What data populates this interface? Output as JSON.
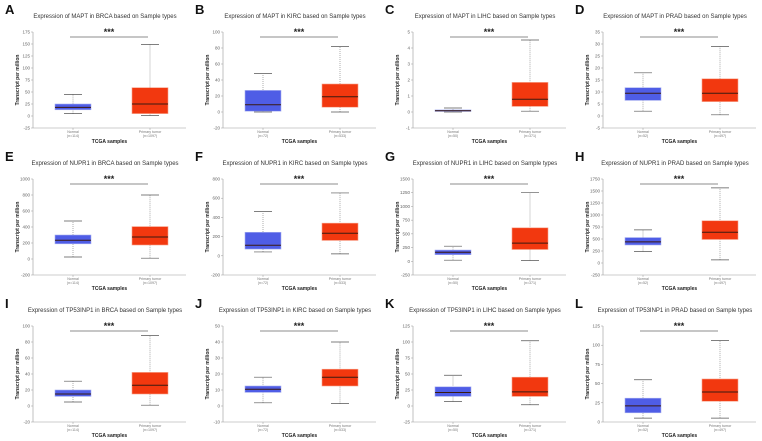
{
  "colors": {
    "normal": "#4f5de6",
    "tumor": "#f2380f",
    "median": "#3a1a10",
    "axis": "#999999"
  },
  "chart_data": [
    {
      "letter": "A",
      "title": "Expression of MAPT in BRCA based on Sample types",
      "type": "box",
      "xlabel": "TCGA samples",
      "ylabel": "Transcript per million",
      "ylim": [
        -25,
        175
      ],
      "ticks": [
        -25,
        0,
        25,
        50,
        75,
        100,
        125,
        150,
        175
      ],
      "significance": "***",
      "groups": [
        {
          "name": "Normal",
          "n": "(n=114)",
          "stats": [
            5,
            13,
            18,
            25,
            45
          ]
        },
        {
          "name": "Primary tumor",
          "n": "(n=1097)",
          "stats": [
            1,
            5,
            25,
            59,
            149
          ]
        }
      ]
    },
    {
      "letter": "B",
      "title": "Expression of MAPT in KIRC based on Sample types",
      "type": "box",
      "xlabel": "TCGA samples",
      "ylabel": "Transcript per million",
      "ylim": [
        -20,
        100
      ],
      "ticks": [
        -20,
        0,
        20,
        40,
        60,
        80,
        100
      ],
      "significance": "***",
      "groups": [
        {
          "name": "Normal",
          "n": "(n=72)",
          "stats": [
            0,
            1,
            9,
            27,
            48
          ]
        },
        {
          "name": "Primary tumor",
          "n": "(n=533)",
          "stats": [
            0,
            6,
            19,
            35,
            82
          ]
        }
      ]
    },
    {
      "letter": "C",
      "title": "Expression of MAPT in LIHC based on Sample types",
      "type": "box",
      "xlabel": "TCGA samples",
      "ylabel": "Transcript per million",
      "ylim": [
        -1,
        5
      ],
      "ticks": [
        -1,
        0,
        1,
        2,
        3,
        4,
        5
      ],
      "significance": "***",
      "groups": [
        {
          "name": "Normal",
          "n": "(n=50)",
          "stats": [
            0,
            0.05,
            0.08,
            0.13,
            0.25
          ]
        },
        {
          "name": "Primary tumor",
          "n": "(n=371)",
          "stats": [
            0.05,
            0.35,
            0.8,
            1.85,
            4.5
          ]
        }
      ]
    },
    {
      "letter": "D",
      "title": "Expression of MAPT in PRAD based on Sample types",
      "type": "box",
      "xlabel": "TCGA samples",
      "ylabel": "Transcript per million",
      "ylim": [
        -5,
        35
      ],
      "ticks": [
        -5,
        0,
        5,
        10,
        15,
        20,
        25,
        30,
        35
      ],
      "significance": "***",
      "groups": [
        {
          "name": "Normal",
          "n": "(n=52)",
          "stats": [
            2,
            6.5,
            9.5,
            11.8,
            18
          ]
        },
        {
          "name": "Primary tumor",
          "n": "(n=497)",
          "stats": [
            0.5,
            6,
            9.5,
            15.5,
            29
          ]
        }
      ]
    },
    {
      "letter": "E",
      "title": "Expression of NUPR1 in BRCA based on Sample types",
      "type": "box",
      "xlabel": "TCGA samples",
      "ylabel": "Transcript per million",
      "ylim": [
        -200,
        1000
      ],
      "ticks": [
        -200,
        0,
        200,
        400,
        600,
        800,
        1000
      ],
      "significance": "***",
      "groups": [
        {
          "name": "Normal",
          "n": "(n=114)",
          "stats": [
            25,
            190,
            235,
            300,
            475
          ]
        },
        {
          "name": "Primary tumor",
          "n": "(n=1097)",
          "stats": [
            10,
            175,
            275,
            405,
            800
          ]
        }
      ]
    },
    {
      "letter": "F",
      "title": "Expression of NUPR1 in KIRC based on Sample types",
      "type": "box",
      "xlabel": "TCGA samples",
      "ylabel": "Transcript per million",
      "ylim": [
        -200,
        800
      ],
      "ticks": [
        -200,
        0,
        200,
        400,
        600,
        800
      ],
      "significance": "***",
      "groups": [
        {
          "name": "Normal",
          "n": "(n=72)",
          "stats": [
            40,
            70,
            110,
            245,
            460
          ]
        },
        {
          "name": "Primary tumor",
          "n": "(n=533)",
          "stats": [
            20,
            160,
            235,
            340,
            655
          ]
        }
      ]
    },
    {
      "letter": "G",
      "title": "Expression of NUPR1 in LIHC based on Sample types",
      "type": "box",
      "xlabel": "TCGA samples",
      "ylabel": "Transcript per million",
      "ylim": [
        -250,
        1500
      ],
      "ticks": [
        -250,
        0,
        250,
        500,
        750,
        1000,
        1250,
        1500
      ],
      "significance": "***",
      "groups": [
        {
          "name": "Normal",
          "n": "(n=50)",
          "stats": [
            20,
            120,
            165,
            205,
            275
          ]
        },
        {
          "name": "Primary tumor",
          "n": "(n=371)",
          "stats": [
            15,
            215,
            330,
            610,
            1255
          ]
        }
      ]
    },
    {
      "letter": "H",
      "title": "Expression of NUPR1 in PRAD based on Sample types",
      "type": "box",
      "xlabel": "TCGA samples",
      "ylabel": "Transcript per million",
      "ylim": [
        -250,
        1750
      ],
      "ticks": [
        -250,
        0,
        250,
        500,
        750,
        1000,
        1250,
        1500,
        1750
      ],
      "significance": "***",
      "groups": [
        {
          "name": "Normal",
          "n": "(n=52)",
          "stats": [
            240,
            375,
            440,
            530,
            690
          ]
        },
        {
          "name": "Primary tumor",
          "n": "(n=497)",
          "stats": [
            65,
            490,
            640,
            880,
            1565
          ]
        }
      ]
    },
    {
      "letter": "I",
      "title": "Expression of TP53INP1 in BRCA based on Sample types",
      "type": "box",
      "xlabel": "TCGA samples",
      "ylabel": "Transcript per million",
      "ylim": [
        -20,
        100
      ],
      "ticks": [
        -20,
        0,
        20,
        40,
        60,
        80,
        100
      ],
      "significance": "***",
      "groups": [
        {
          "name": "Normal",
          "n": "(n=114)",
          "stats": [
            5,
            12,
            15,
            20,
            31
          ]
        },
        {
          "name": "Primary tumor",
          "n": "(n=1097)",
          "stats": [
            1,
            15,
            26,
            42,
            88
          ]
        }
      ]
    },
    {
      "letter": "J",
      "title": "Expression of TP53INP1 in KIRC based on Sample types",
      "type": "box",
      "xlabel": "TCGA samples",
      "ylabel": "Transcript per million",
      "ylim": [
        -10,
        50
      ],
      "ticks": [
        -10,
        0,
        10,
        20,
        30,
        40,
        50
      ],
      "significance": "***",
      "groups": [
        {
          "name": "Normal",
          "n": "(n=72)",
          "stats": [
            2,
            8.5,
            10.5,
            12.5,
            18
          ]
        },
        {
          "name": "Primary tumor",
          "n": "(n=533)",
          "stats": [
            1.5,
            12.5,
            18,
            23,
            40
          ]
        }
      ]
    },
    {
      "letter": "K",
      "title": "Expression of TP53INP1 in LIHC based on Sample types",
      "type": "box",
      "xlabel": "TCGA samples",
      "ylabel": "Transcript per million",
      "ylim": [
        -25,
        125
      ],
      "ticks": [
        -25,
        0,
        25,
        50,
        75,
        100,
        125
      ],
      "significance": "***",
      "groups": [
        {
          "name": "Normal",
          "n": "(n=50)",
          "stats": [
            7,
            15,
            21,
            30,
            48
          ]
        },
        {
          "name": "Primary tumor",
          "n": "(n=371)",
          "stats": [
            2,
            15,
            22,
            45,
            102
          ]
        }
      ]
    },
    {
      "letter": "L",
      "title": "Expression of TP53INP1 in PRAD based on Sample types",
      "type": "box",
      "xlabel": "TCGA samples",
      "ylabel": "Transcript per million",
      "ylim": [
        0,
        125
      ],
      "ticks": [
        0,
        25,
        50,
        75,
        100,
        125
      ],
      "significance": "***",
      "groups": [
        {
          "name": "Normal",
          "n": "(n=52)",
          "stats": [
            5,
            12,
            21,
            31,
            55
          ]
        },
        {
          "name": "Primary tumor",
          "n": "(n=497)",
          "stats": [
            5,
            27,
            39,
            56,
            106
          ]
        }
      ]
    }
  ]
}
